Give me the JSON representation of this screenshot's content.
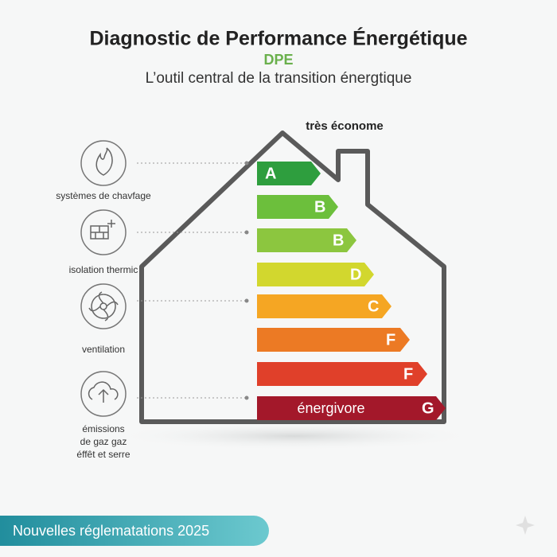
{
  "header": {
    "title": "Diagnostic de Performance Énergétique",
    "acronym": "DPE",
    "subtitle": "L’outil central de la transition énergtique"
  },
  "scale": {
    "top_label": "très économe",
    "bottom_label": "énergivore",
    "classes": [
      "A",
      "B",
      "B",
      "D",
      "C",
      "F",
      "F",
      "G"
    ]
  },
  "factors": [
    {
      "label": "systèmes de chavfage"
    },
    {
      "label": "isolation thermic"
    },
    {
      "label": "ventilation"
    },
    {
      "label": [
        "émissions",
        "de gaz gaz",
        "éffêt et serre"
      ]
    }
  ],
  "banner": {
    "text": "Nouvelles réglematations 2025"
  }
}
